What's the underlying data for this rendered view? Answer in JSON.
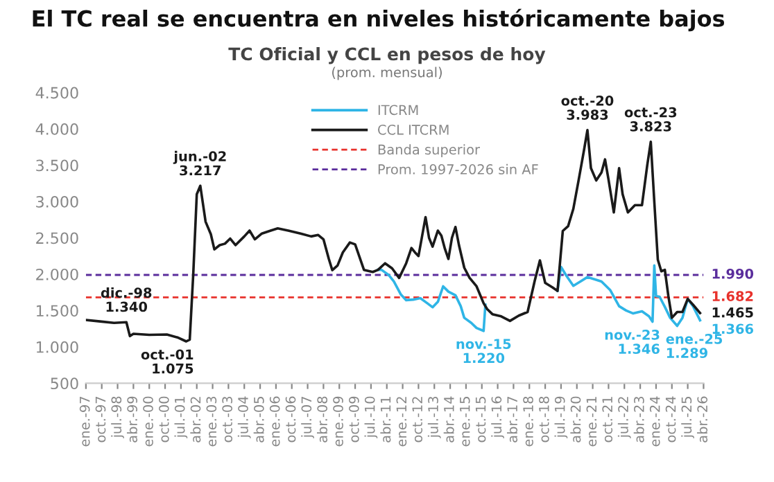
{
  "chart_data": {
    "type": "line",
    "title": "El TC real se encuentra en niveles históricamente bajos",
    "subtitle": "TC Oficial y CCL en pesos de hoy",
    "ylim": [
      500,
      4500
    ],
    "yticks": [
      {
        "value": 500,
        "label": "500"
      },
      {
        "value": 1000,
        "label": "1.000"
      },
      {
        "value": 1500,
        "label": "1.500"
      },
      {
        "value": 2000,
        "label": "2.000"
      },
      {
        "value": 2500,
        "label": "2.500"
      },
      {
        "value": 3000,
        "label": "3.000"
      },
      {
        "value": 3500,
        "label": "3.500"
      },
      {
        "value": 4000,
        "label": "4.000"
      },
      {
        "value": 4500,
        "label": "4.500"
      }
    ],
    "xlim": [
      "1997-01",
      "2026-04"
    ],
    "xticks": [
      {
        "value": "1997-01",
        "label": "ene.-97"
      },
      {
        "value": "1997-10",
        "label": "oct.-97"
      },
      {
        "value": "1998-07",
        "label": "jul.-98"
      },
      {
        "value": "1999-04",
        "label": "abr.-99"
      },
      {
        "value": "2000-01",
        "label": "ene.-00"
      },
      {
        "value": "2000-10",
        "label": "oct.-00"
      },
      {
        "value": "2001-07",
        "label": "jul.-01"
      },
      {
        "value": "2002-04",
        "label": "abr.-02"
      },
      {
        "value": "2003-01",
        "label": "ene.-03"
      },
      {
        "value": "2003-10",
        "label": "oct.-03"
      },
      {
        "value": "2004-07",
        "label": "jul.-04"
      },
      {
        "value": "2005-04",
        "label": "abr.-05"
      },
      {
        "value": "2006-01",
        "label": "ene.-06"
      },
      {
        "value": "2006-10",
        "label": "oct.-06"
      },
      {
        "value": "2007-07",
        "label": "jul.-07"
      },
      {
        "value": "2008-04",
        "label": "abr.-08"
      },
      {
        "value": "2009-01",
        "label": "ene.-09"
      },
      {
        "value": "2009-10",
        "label": "oct.-09"
      },
      {
        "value": "2010-07",
        "label": "jul.-10"
      },
      {
        "value": "2011-04",
        "label": "abr.-11"
      },
      {
        "value": "2012-01",
        "label": "ene.-12"
      },
      {
        "value": "2012-10",
        "label": "oct.-12"
      },
      {
        "value": "2013-07",
        "label": "jul.-13"
      },
      {
        "value": "2014-04",
        "label": "abr.-14"
      },
      {
        "value": "2015-01",
        "label": "ene.-15"
      },
      {
        "value": "2015-10",
        "label": "oct.-15"
      },
      {
        "value": "2016-07",
        "label": "jul.-16"
      },
      {
        "value": "2017-04",
        "label": "abr.-17"
      },
      {
        "value": "2018-01",
        "label": "ene.-18"
      },
      {
        "value": "2018-10",
        "label": "oct.-18"
      },
      {
        "value": "2019-07",
        "label": "jul.-19"
      },
      {
        "value": "2020-04",
        "label": "abr.-20"
      },
      {
        "value": "2021-01",
        "label": "ene.-21"
      },
      {
        "value": "2021-10",
        "label": "oct.-21"
      },
      {
        "value": "2022-07",
        "label": "jul.-22"
      },
      {
        "value": "2023-04",
        "label": "abr.-23"
      },
      {
        "value": "2024-01",
        "label": "ene.-24"
      },
      {
        "value": "2024-10",
        "label": "oct.-24"
      },
      {
        "value": "2025-07",
        "label": "jul.-25"
      },
      {
        "value": "2026-04",
        "label": "abr.-26"
      }
    ],
    "series": [
      {
        "name": "ITCRM",
        "color": "#2fb5e6",
        "x": [
          "2010-11",
          "2011-01",
          "2011-05",
          "2011-08",
          "2011-12",
          "2012-03",
          "2012-07",
          "2012-11",
          "2013-03",
          "2013-06",
          "2013-09",
          "2013-12",
          "2014-03",
          "2014-07",
          "2014-10",
          "2014-12",
          "2015-04",
          "2015-07",
          "2015-11",
          "2015-12",
          "2017-06",
          "2019-05",
          "2019-07",
          "2019-10",
          "2020-02",
          "2020-06",
          "2020-10",
          "2021-02",
          "2021-06",
          "2021-11",
          "2022-04",
          "2022-08",
          "2022-12",
          "2023-05",
          "2023-09",
          "2023-11",
          "2023-12",
          "2024-01",
          "2024-03",
          "2024-06",
          "2024-09",
          "2025-01",
          "2025-04",
          "2025-07",
          "2025-10",
          "2026-02"
        ],
        "values": [
          2060,
          2060,
          1990,
          1900,
          1720,
          1643,
          1650,
          1670,
          1600,
          1545,
          1620,
          1833,
          1760,
          1710,
          1560,
          1400,
          1330,
          1260,
          1220,
          1580,
          null,
          1770,
          2100,
          1980,
          1840,
          1900,
          1960,
          1930,
          1900,
          1780,
          1560,
          1500,
          1460,
          1490,
          1420,
          1346,
          2120,
          1700,
          1690,
          1550,
          1400,
          1289,
          1400,
          1660,
          1560,
          1366
        ]
      },
      {
        "name": "CCL ITCRM",
        "color": "#1a1a1a",
        "x": [
          "1997-01",
          "1997-09",
          "1998-05",
          "1998-12",
          "1999-02",
          "1999-04",
          "2000-01",
          "2000-11",
          "2001-05",
          "2001-10",
          "2001-12",
          "2002-02",
          "2002-04",
          "2002-06",
          "2002-09",
          "2002-12",
          "2003-02",
          "2003-05",
          "2003-08",
          "2003-11",
          "2004-02",
          "2004-07",
          "2004-10",
          "2005-01",
          "2005-05",
          "2005-10",
          "2006-02",
          "2006-08",
          "2007-03",
          "2007-09",
          "2008-01",
          "2008-04",
          "2008-07",
          "2008-09",
          "2008-12",
          "2009-03",
          "2009-07",
          "2009-10",
          "2010-03",
          "2010-08",
          "2010-11",
          "2011-03",
          "2011-07",
          "2011-11",
          "2012-03",
          "2012-06",
          "2012-08",
          "2012-10",
          "2013-02",
          "2013-04",
          "2013-06",
          "2013-09",
          "2013-11",
          "2014-01",
          "2014-03",
          "2014-05",
          "2014-07",
          "2014-09",
          "2014-12",
          "2015-03",
          "2015-07",
          "2015-11",
          "2016-01",
          "2016-04",
          "2016-09",
          "2017-02",
          "2017-07",
          "2017-12",
          "2018-04",
          "2018-07",
          "2018-10",
          "2019-02",
          "2019-05",
          "2019-08",
          "2019-11",
          "2020-02",
          "2020-05",
          "2020-08",
          "2020-10",
          "2020-12",
          "2021-03",
          "2021-06",
          "2021-08",
          "2021-10",
          "2022-01",
          "2022-04",
          "2022-06",
          "2022-09",
          "2023-01",
          "2023-05",
          "2023-08",
          "2023-10",
          "2023-12",
          "2024-02",
          "2024-04",
          "2024-06",
          "2024-08",
          "2024-10",
          "2025-01",
          "2025-04",
          "2025-07",
          "2025-10",
          "2026-02"
        ],
        "values": [
          1370,
          1350,
          1330,
          1340,
          1148,
          1180,
          1165,
          1170,
          1130,
          1075,
          1100,
          2000,
          3100,
          3217,
          2723,
          2550,
          2342,
          2400,
          2420,
          2490,
          2400,
          2520,
          2600,
          2480,
          2560,
          2600,
          2630,
          2600,
          2560,
          2520,
          2540,
          2480,
          2214,
          2056,
          2120,
          2300,
          2437,
          2410,
          2060,
          2030,
          2060,
          2150,
          2080,
          1948,
          2150,
          2360,
          2300,
          2250,
          2786,
          2500,
          2380,
          2600,
          2530,
          2350,
          2210,
          2500,
          2650,
          2400,
          2090,
          1950,
          1833,
          1600,
          1520,
          1450,
          1420,
          1357,
          1430,
          1480,
          1904,
          2190,
          1880,
          1820,
          1770,
          2595,
          2660,
          2900,
          3294,
          3700,
          3983,
          3460,
          3290,
          3400,
          3580,
          3300,
          2850,
          3460,
          3100,
          2850,
          2950,
          2950,
          3500,
          3823,
          3000,
          2200,
          2040,
          2060,
          1700,
          1400,
          1480,
          1480,
          1660,
          1580,
          1465
        ]
      }
    ],
    "ref_lines": [
      {
        "axis": "y",
        "value": 1682,
        "label": "Banda superior",
        "color": "#e8322c",
        "line_style": "dashed"
      },
      {
        "axis": "y",
        "value": 1990,
        "label": "Prom. 1997-2026 sin AF",
        "color": "#5a2d9c",
        "line_style": "dashed"
      }
    ],
    "annotations": [
      "(prom. mensual)",
      {
        "text": "dic.-98\n1.340",
        "x": "1998-12",
        "y": 1340
      },
      {
        "text": "oct.-01\n1.075",
        "x": "2001-10",
        "y": 1075
      },
      {
        "text": "jun.-02\n3.217",
        "x": "2002-06",
        "y": 3217
      },
      {
        "text": "nov.-15\n1.220",
        "x": "2015-11",
        "y": 1220
      },
      {
        "text": "oct.-20\n3.983",
        "x": "2020-10",
        "y": 3983
      },
      {
        "text": "oct.-23\n3.823",
        "x": "2023-10",
        "y": 3823
      },
      {
        "text": "nov.-23\n1.346",
        "x": "2023-11",
        "y": 1346
      },
      {
        "text": "ene.-25\n1.289",
        "x": "2025-01",
        "y": 1289
      },
      {
        "text": "1.990",
        "x": "2026-04",
        "y": 1990
      },
      {
        "text": "1.682",
        "x": "2026-04",
        "y": 1682
      },
      {
        "text": "1.465",
        "x": "2026-04",
        "y": 1465
      },
      {
        "text": "1.366",
        "x": "2026-04",
        "y": 1366
      }
    ],
    "legend": "top",
    "grid": false,
    "marker": "none",
    "line_style": "solid"
  }
}
